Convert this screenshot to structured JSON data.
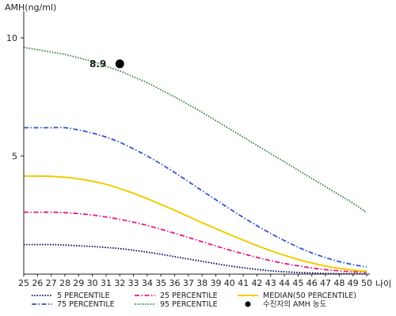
{
  "chart_data": {
    "type": "line",
    "ylabel": "AMH(ng/ml)",
    "xlabel": "나이",
    "x": [
      25,
      26,
      27,
      28,
      29,
      30,
      31,
      32,
      33,
      34,
      35,
      36,
      37,
      38,
      39,
      40,
      41,
      42,
      43,
      44,
      45,
      46,
      47,
      48,
      49,
      50
    ],
    "ylim": [
      0,
      11
    ],
    "xlim": [
      25,
      50
    ],
    "y_ticks": [
      5,
      10
    ],
    "grid": false,
    "series": [
      {
        "name": "5 PERCENTILE",
        "color": "#000066",
        "style": "dotted",
        "values": [
          1.25,
          1.25,
          1.25,
          1.23,
          1.2,
          1.17,
          1.13,
          1.08,
          1.01,
          0.93,
          0.84,
          0.74,
          0.64,
          0.54,
          0.44,
          0.35,
          0.27,
          0.2,
          0.14,
          0.1,
          0.07,
          0.05,
          0.03,
          0.02,
          0.02,
          0.01
        ]
      },
      {
        "name": "25 PERCENTILE",
        "color": "#e6197f",
        "style": "dashdot",
        "values": [
          2.62,
          2.62,
          2.62,
          2.6,
          2.56,
          2.5,
          2.42,
          2.32,
          2.2,
          2.06,
          1.9,
          1.73,
          1.55,
          1.37,
          1.19,
          1.02,
          0.86,
          0.71,
          0.57,
          0.45,
          0.35,
          0.26,
          0.19,
          0.14,
          0.1,
          0.08
        ]
      },
      {
        "name": "MEDIAN(50 PERCENTILE)",
        "color": "#f2cc00",
        "style": "solid",
        "values": [
          4.15,
          4.15,
          4.14,
          4.1,
          4.03,
          3.93,
          3.8,
          3.62,
          3.42,
          3.19,
          2.95,
          2.7,
          2.44,
          2.18,
          1.93,
          1.68,
          1.44,
          1.21,
          0.99,
          0.8,
          0.62,
          0.47,
          0.34,
          0.24,
          0.17,
          0.12
        ]
      },
      {
        "name": "75 PERCENTILE",
        "color": "#3355cc",
        "style": "dashdot",
        "values": [
          6.2,
          6.2,
          6.2,
          6.2,
          6.1,
          5.97,
          5.8,
          5.58,
          5.3,
          5.0,
          4.66,
          4.3,
          3.92,
          3.53,
          3.15,
          2.77,
          2.4,
          2.05,
          1.72,
          1.42,
          1.14,
          0.9,
          0.7,
          0.53,
          0.4,
          0.3
        ]
      },
      {
        "name": "95 PERCENTILE",
        "color": "#2e7d3c",
        "style": "dotted",
        "values": [
          9.6,
          9.5,
          9.4,
          9.3,
          9.15,
          9.0,
          8.8,
          8.6,
          8.35,
          8.1,
          7.8,
          7.5,
          7.18,
          6.85,
          6.5,
          6.15,
          5.8,
          5.45,
          5.1,
          4.75,
          4.4,
          4.05,
          3.7,
          3.35,
          3.0,
          2.6
        ]
      }
    ],
    "marker": {
      "label": "수진자의 AMH 농도",
      "x": 32,
      "y": 8.9,
      "text": "8.9",
      "color": "#000000"
    },
    "legend_position": "bottom"
  }
}
